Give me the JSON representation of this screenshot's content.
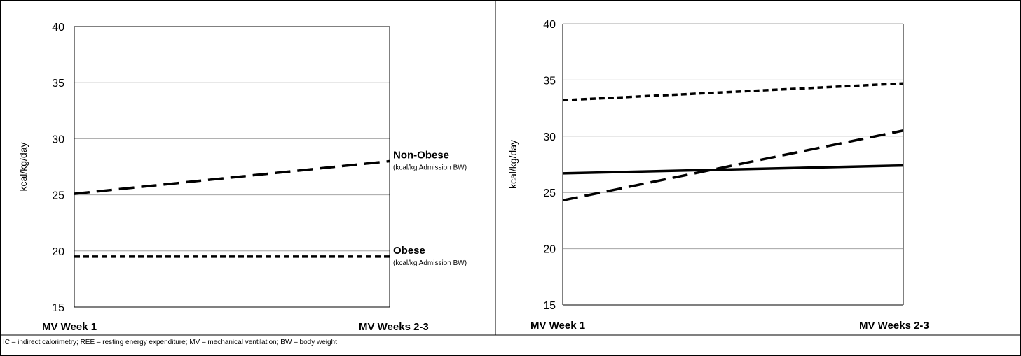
{
  "footnote": "IC – indirect calorimetry; REE – resting energy expenditure; MV – mechanical ventilation;  BW – body weight",
  "colors": {
    "line": "#000000",
    "grid": "#a6a6a6",
    "axis": "#000000"
  },
  "chart_data": [
    {
      "type": "line",
      "categories": [
        "MV Week 1",
        "MV Weeks 2-3"
      ],
      "ylabel": "kcal/kg/day",
      "ylim": [
        15,
        40
      ],
      "yticks": [
        15,
        20,
        25,
        30,
        35,
        40
      ],
      "grid": true,
      "series": [
        {
          "name": "Non-Obese",
          "sublabel": "(kcal/kg Admission BW)",
          "style": "long-dash",
          "values": [
            25.1,
            28.0
          ]
        },
        {
          "name": "Obese",
          "sublabel": "(kcal/kg Admission BW)",
          "style": "short-dash",
          "values": [
            19.5,
            19.5
          ]
        }
      ]
    },
    {
      "type": "line",
      "categories": [
        "MV Week 1",
        "MV Weeks 2-3"
      ],
      "ylabel": "kcal/kg/day",
      "ylim": [
        15,
        40
      ],
      "yticks": [
        15,
        20,
        25,
        30,
        35,
        40
      ],
      "grid": true,
      "series": [
        {
          "style": "short-dash",
          "values": [
            33.2,
            34.7
          ]
        },
        {
          "style": "long-dash",
          "values": [
            24.3,
            30.5
          ]
        },
        {
          "style": "solid",
          "values": [
            26.7,
            27.4
          ]
        }
      ]
    }
  ]
}
